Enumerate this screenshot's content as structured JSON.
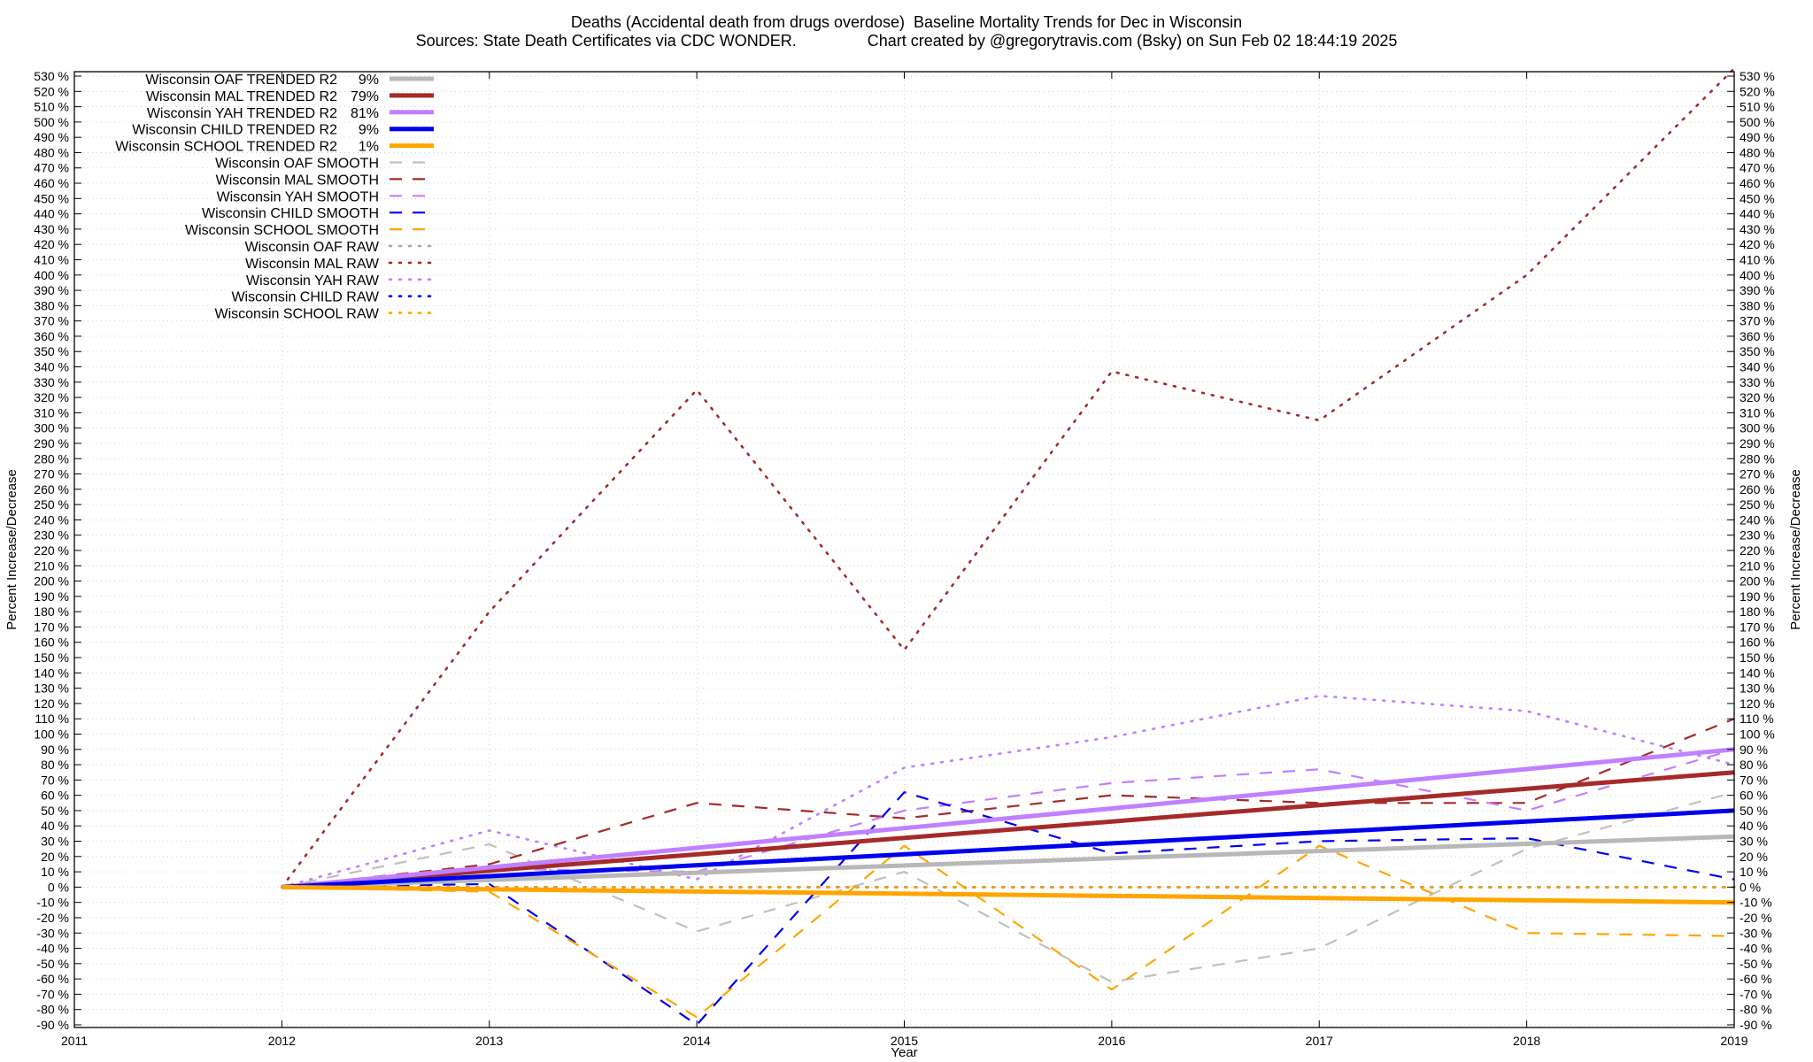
{
  "title": "Deaths (Accidental death from drugs overdose)  Baseline Mortality Trends for Dec in Wisconsin",
  "subtitle": "Sources: State Death Certificates via CDC WONDER.                Chart created by @gregorytravis.com (Bsky) on Sun Feb 02 18:44:19 2025",
  "chart_data": {
    "type": "line",
    "xlabel": "Year",
    "ylabel": "Percent Increase/Decrease",
    "y2label": "Percent Increase/Decrease",
    "xlim": [
      2011,
      2019
    ],
    "ylim": [
      -90,
      535
    ],
    "xticks": [
      "2011",
      "2012",
      "2013",
      "2014",
      "2015",
      "2016",
      "2017",
      "2018",
      "2019"
    ],
    "ytick_suffix": " %",
    "grid": true,
    "legend_position": "top-left",
    "series": [
      {
        "name": "Wisconsin OAF TRENDED R2",
        "r2": "9%",
        "style": "solid",
        "color": "#b8b8b8",
        "x": [
          2012,
          2019
        ],
        "y": [
          0,
          33
        ]
      },
      {
        "name": "Wisconsin MAL TRENDED R2",
        "r2": "79%",
        "style": "solid",
        "color": "#a52a2a",
        "x": [
          2012,
          2019
        ],
        "y": [
          0,
          75
        ]
      },
      {
        "name": "Wisconsin YAH TRENDED R2",
        "r2": "81%",
        "style": "solid",
        "color": "#c080ff",
        "x": [
          2012,
          2019
        ],
        "y": [
          0,
          90
        ]
      },
      {
        "name": "Wisconsin CHILD TRENDED R2",
        "r2": "9%",
        "style": "solid",
        "color": "#0000ee",
        "x": [
          2012,
          2019
        ],
        "y": [
          0,
          50
        ]
      },
      {
        "name": "Wisconsin SCHOOL TRENDED R2",
        "r2": "1%",
        "style": "solid",
        "color": "#ffa500",
        "x": [
          2012,
          2019
        ],
        "y": [
          0,
          -10
        ]
      },
      {
        "name": "Wisconsin OAF SMOOTH",
        "style": "dash",
        "color": "#c0c0c0",
        "x": [
          2012,
          2013,
          2014,
          2015,
          2016,
          2017,
          2018,
          2019
        ],
        "y": [
          0,
          28,
          -29,
          10,
          -62,
          -40,
          25,
          62
        ]
      },
      {
        "name": "Wisconsin MAL SMOOTH",
        "style": "dash",
        "color": "#a52a2a",
        "x": [
          2012,
          2013,
          2014,
          2015,
          2016,
          2017,
          2018,
          2019
        ],
        "y": [
          0,
          15,
          55,
          45,
          60,
          55,
          55,
          110
        ]
      },
      {
        "name": "Wisconsin YAH SMOOTH",
        "style": "dash",
        "color": "#c080ff",
        "x": [
          2012,
          2013,
          2014,
          2015,
          2016,
          2017,
          2018,
          2019
        ],
        "y": [
          0,
          12,
          10,
          50,
          68,
          77,
          50,
          90
        ]
      },
      {
        "name": "Wisconsin CHILD SMOOTH",
        "style": "dash",
        "color": "#0000ee",
        "x": [
          2012,
          2013,
          2014,
          2015,
          2016,
          2017,
          2018,
          2019
        ],
        "y": [
          0,
          2,
          -90,
          62,
          22,
          30,
          32,
          5
        ]
      },
      {
        "name": "Wisconsin SCHOOL SMOOTH",
        "style": "dash",
        "color": "#ffa500",
        "x": [
          2012,
          2013,
          2014,
          2015,
          2016,
          2017,
          2018,
          2019
        ],
        "y": [
          0,
          -3,
          -85,
          27,
          -67,
          27,
          -30,
          -32
        ]
      },
      {
        "name": "Wisconsin OAF RAW",
        "style": "dot",
        "color": "#a8a8a8",
        "x": [
          2012,
          2013,
          2014,
          2015,
          2016,
          2017,
          2018,
          2019
        ],
        "y": [
          0,
          0,
          0,
          0,
          0,
          0,
          0,
          0
        ]
      },
      {
        "name": "Wisconsin MAL RAW",
        "style": "dot",
        "color": "#a52a2a",
        "x": [
          2012,
          2013,
          2014,
          2015,
          2016,
          2017,
          2018,
          2019
        ],
        "y": [
          0,
          180,
          325,
          155,
          337,
          305,
          400,
          535
        ]
      },
      {
        "name": "Wisconsin YAH RAW",
        "style": "dot",
        "color": "#c080ff",
        "x": [
          2012,
          2013,
          2014,
          2015,
          2016,
          2017,
          2018,
          2019
        ],
        "y": [
          0,
          37,
          5,
          78,
          98,
          125,
          115,
          80
        ]
      },
      {
        "name": "Wisconsin CHILD RAW",
        "style": "dot",
        "color": "#0000ee",
        "x": [
          2012,
          2013,
          2014,
          2015,
          2016,
          2017,
          2018,
          2019
        ],
        "y": [
          0,
          0,
          0,
          0,
          0,
          0,
          0,
          0
        ]
      },
      {
        "name": "Wisconsin SCHOOL RAW",
        "style": "dot",
        "color": "#ffa500",
        "x": [
          2012,
          2013,
          2014,
          2015,
          2016,
          2017,
          2018,
          2019
        ],
        "y": [
          0,
          0,
          0,
          0,
          0,
          0,
          0,
          0
        ]
      }
    ]
  }
}
